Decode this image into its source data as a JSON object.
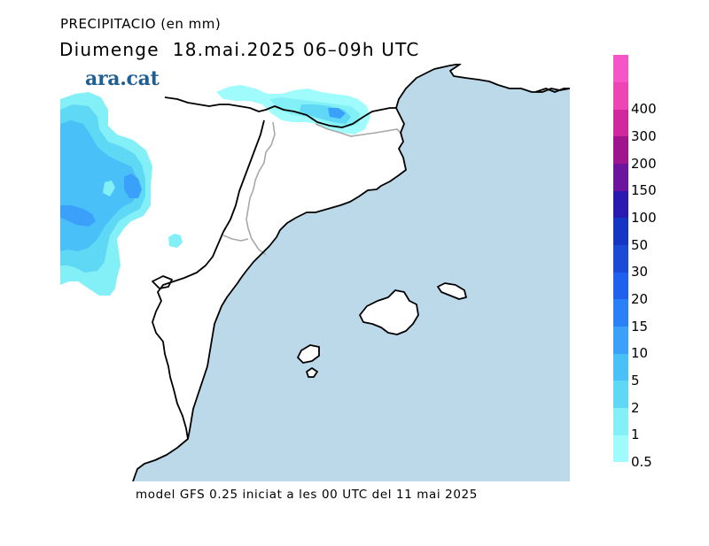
{
  "header": {
    "title": "PRECIPITACIO (en mm)",
    "subtitle": "Diumenge  18.mai.2025 06–09h UTC"
  },
  "logo": {
    "text": "ara.cat"
  },
  "footer": {
    "model_info": "model GFS 0.25 iniciat a les 00 UTC del 11 mai 2025"
  },
  "legend": {
    "unit": "mm",
    "levels": [
      {
        "label": "0.5",
        "color": "#a0fbfc"
      },
      {
        "label": "1",
        "color": "#82f0f6"
      },
      {
        "label": "2",
        "color": "#5ed8f5"
      },
      {
        "label": "5",
        "color": "#49c0f8"
      },
      {
        "label": "10",
        "color": "#3aa0f9"
      },
      {
        "label": "15",
        "color": "#2a80f6"
      },
      {
        "label": "20",
        "color": "#1f60ee"
      },
      {
        "label": "30",
        "color": "#1a4ad6"
      },
      {
        "label": "50",
        "color": "#1536c4"
      },
      {
        "label": "100",
        "color": "#2a1ab0"
      },
      {
        "label": "150",
        "color": "#6c149e"
      },
      {
        "label": "200",
        "color": "#a0148e"
      },
      {
        "label": "300",
        "color": "#d2289e"
      },
      {
        "label": "400",
        "color": "#ee44b4"
      },
      {
        "label": "",
        "color": "#f655c8"
      }
    ]
  },
  "map": {
    "sea_color": "#bcd9ea",
    "land_color": "#ffffff",
    "coast_color": "#000000",
    "border_color": "#a8a8a8"
  }
}
